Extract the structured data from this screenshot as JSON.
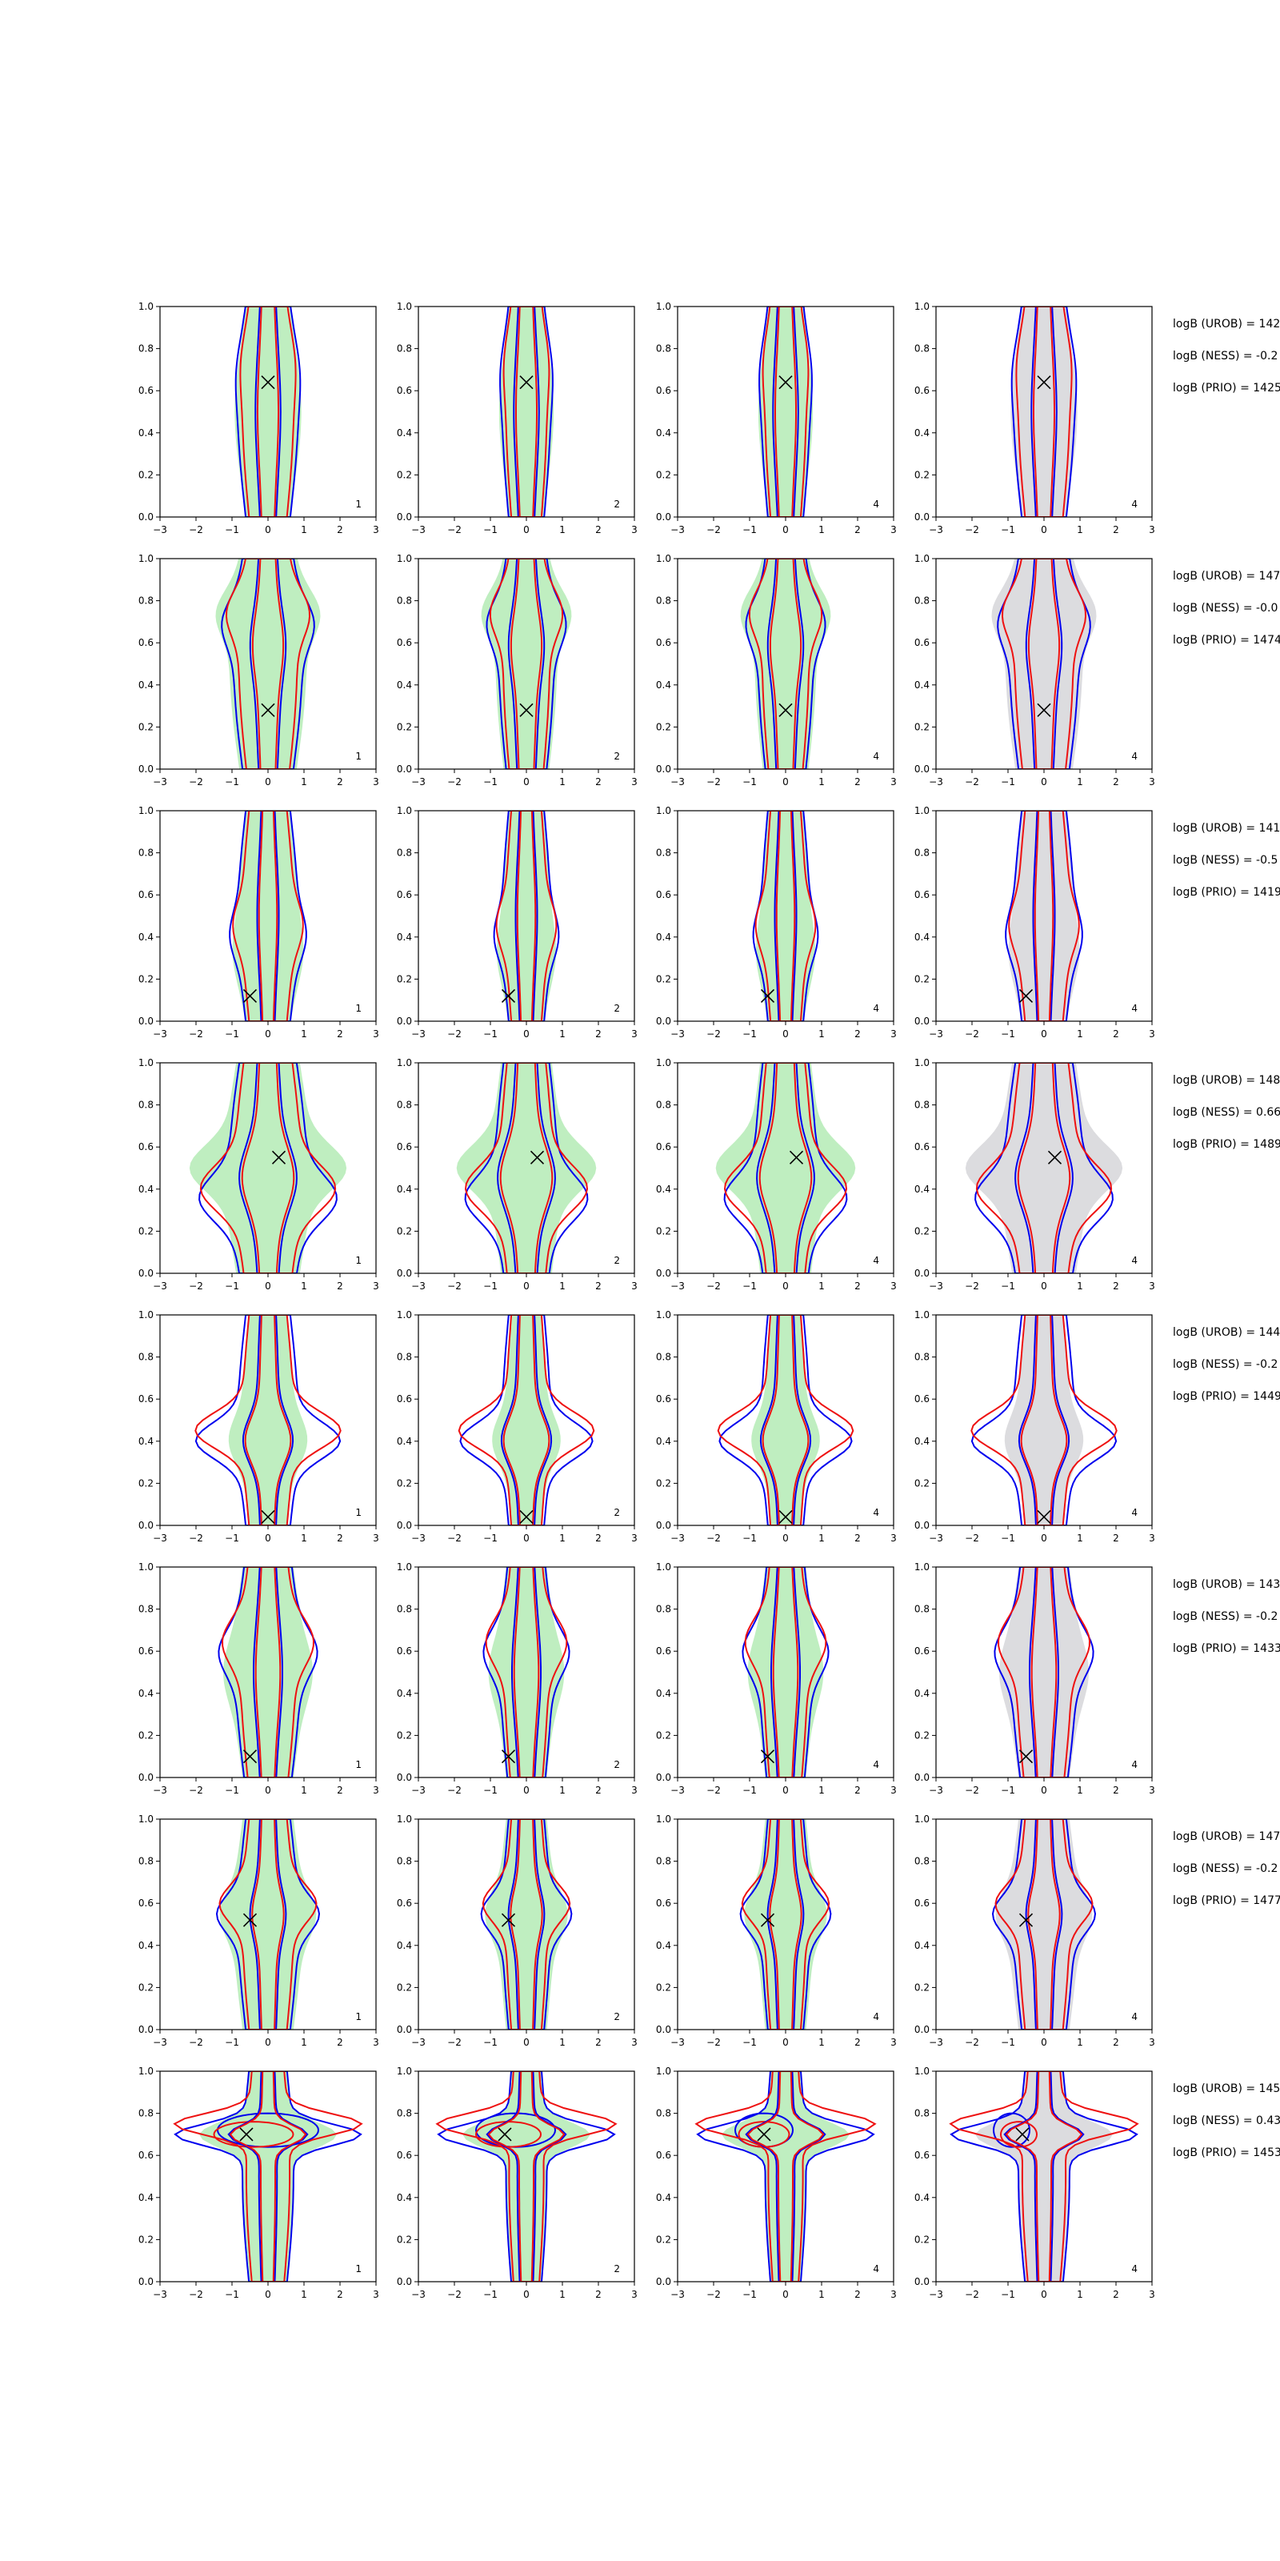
{
  "chart_data": {
    "type": "contour-grid",
    "xlim": [
      -3,
      3
    ],
    "ylim": [
      0,
      1
    ],
    "xticks": [
      "−3",
      "−2",
      "−1",
      "0",
      "1",
      "2",
      "3"
    ],
    "yticks": [
      "0.0",
      "0.2",
      "0.4",
      "0.6",
      "0.8",
      "1.0"
    ],
    "colors": {
      "blue_contour": "#0000ee",
      "red_contour": "#ee1111",
      "green_fill": "#bfeec0",
      "grey_fill": "#dcdcdf"
    },
    "column_labels": [
      "1",
      "2",
      "4",
      "4"
    ],
    "rows": [
      {
        "marker": [
          0.0,
          0.64
        ],
        "annotations": [
          "logB (UROB) = 142",
          "logB (NESS) = -0.2",
          "logB (PRIO) = 1425"
        ]
      },
      {
        "marker": [
          0.0,
          0.28
        ],
        "annotations": [
          "logB (UROB) = 147",
          "logB (NESS) = -0.0",
          "logB (PRIO) = 1474"
        ]
      },
      {
        "marker": [
          -0.5,
          0.12
        ],
        "annotations": [
          "logB (UROB) = 141",
          "logB (NESS) = -0.5",
          "logB (PRIO) = 1419"
        ]
      },
      {
        "marker": [
          0.3,
          0.55
        ],
        "annotations": [
          "logB (UROB) = 148",
          "logB (NESS) = 0.66",
          "logB (PRIO) = 1489"
        ]
      },
      {
        "marker": [
          0.0,
          0.04
        ],
        "annotations": [
          "logB (UROB) = 144",
          "logB (NESS) = -0.2",
          "logB (PRIO) = 1449"
        ]
      },
      {
        "marker": [
          -0.5,
          0.1
        ],
        "annotations": [
          "logB (UROB) = 143",
          "logB (NESS) = -0.2",
          "logB (PRIO) = 1433"
        ]
      },
      {
        "marker": [
          -0.5,
          0.52
        ],
        "annotations": [
          "logB (UROB) = 147",
          "logB (NESS) = -0.2",
          "logB (PRIO) = 1477"
        ]
      },
      {
        "marker": [
          -0.6,
          0.7
        ],
        "annotations": [
          "logB (UROB) = 145",
          "logB (NESS) = 0.43",
          "logB (PRIO) = 1453"
        ]
      }
    ]
  }
}
